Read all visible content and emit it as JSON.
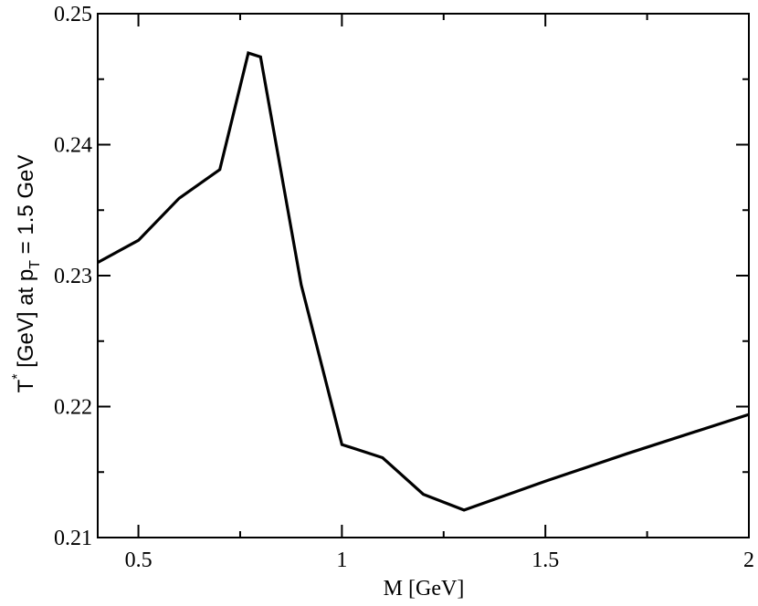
{
  "chart_data": {
    "type": "line",
    "title": "",
    "xlabel": "M [GeV]",
    "ylabel": {
      "main": "T",
      "sup": "*",
      "middle": " [GeV] at p",
      "sub": "T",
      "tail": " = 1.5 GeV"
    },
    "xlim": [
      0.4,
      2.0
    ],
    "ylim": [
      0.21,
      0.25
    ],
    "x_ticks": [
      0.5,
      1.0,
      1.5,
      2.0
    ],
    "x_tick_labels": [
      "0.5",
      "1",
      "1.5",
      "2"
    ],
    "y_ticks": [
      0.21,
      0.22,
      0.23,
      0.24,
      0.25
    ],
    "y_tick_labels": [
      "0.21",
      "0.22",
      "0.23",
      "0.24",
      "0.25"
    ],
    "grid": false,
    "series": [
      {
        "color": "#000000",
        "x": [
          0.4,
          0.5,
          0.6,
          0.7,
          0.77,
          0.8,
          0.9,
          1.0,
          1.1,
          1.2,
          1.3,
          1.5,
          1.7,
          2.0
        ],
        "y": [
          0.231,
          0.2327,
          0.2359,
          0.2381,
          0.247,
          0.2467,
          0.2293,
          0.2171,
          0.2161,
          0.2133,
          0.2121,
          0.2143,
          0.2164,
          0.2194
        ]
      }
    ]
  }
}
